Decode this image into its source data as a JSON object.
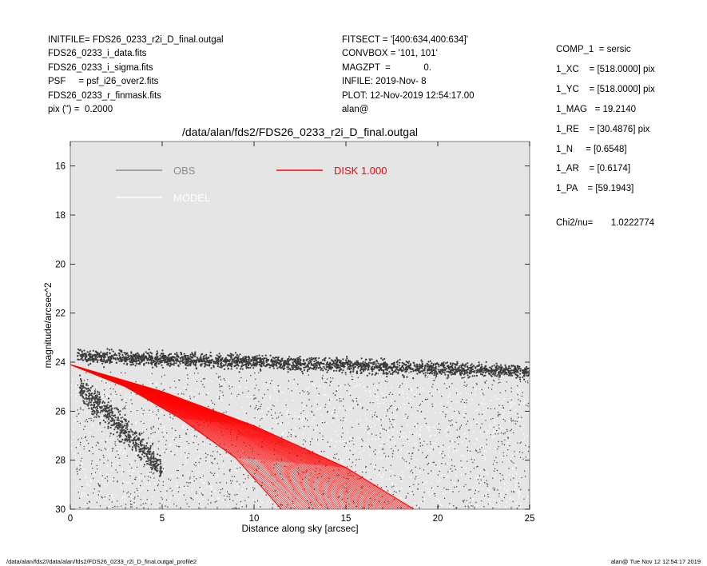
{
  "header_left": [
    "INITFILE= FDS26_0233_r2i_D_final.outgal",
    "FDS26_0233_i_data.fits",
    "FDS26_0233_i_sigma.fits",
    "PSF     = psf_i26_over2.fits",
    "FDS26_0233_r_finmask.fits",
    "pix (\") =  0.2000"
  ],
  "header_mid": [
    "FITSECT = '[400:634,400:634]'",
    "CONVBOX = '101, 101'",
    "MAGZPT  =             0.",
    "INFILE: 2019-Nov- 8",
    "PLOT: 12-Nov-2019 12:54:17.00",
    "alan@"
  ],
  "header_right": [
    "COMP_1  = sersic",
    "1_XC    = [518.0000] pix",
    "1_YC    = [518.0000] pix",
    "1_MAG   = 19.2140",
    "1_RE    = [30.4876] pix",
    "1_N     = [0.6548]",
    "1_AR    = [0.6174]",
    "1_PA    = [59.1943]"
  ],
  "chi2": "Chi2/nu=       1.0222774",
  "footer_left": "/data/alan/fds2//data/alan/fds2/FDS26_0233_r2i_D_final.outgal_profile2",
  "footer_right": "alan@   Tue Nov 12 12:54:17 2019",
  "chart_data": {
    "type": "scatter",
    "title": "/data/alan/fds2/FDS26_0233_r2i_D_final.outgal",
    "xlabel": "Distance along sky [arcsec]",
    "ylabel": "magnitude/arcsec^2",
    "xlim": [
      0,
      25
    ],
    "ylim": [
      30,
      15
    ],
    "y_inverted": true,
    "x_ticks": [
      0,
      5,
      10,
      15,
      20,
      25
    ],
    "y_ticks": [
      16,
      18,
      20,
      22,
      24,
      26,
      28,
      30
    ],
    "background": "#e5e5e5",
    "legend": [
      {
        "name": "OBS",
        "color": "#8c8c8c"
      },
      {
        "name": "MODEL",
        "color": "#ffffff"
      },
      {
        "name": "DISK  1.000",
        "color": "#ff0000"
      }
    ],
    "series": [
      {
        "name": "OBS",
        "color": "#404040",
        "description_points": [
          [
            0.5,
            23.7
          ],
          [
            5,
            23.9
          ],
          [
            10,
            24.0
          ],
          [
            15,
            24.2
          ],
          [
            20,
            24.3
          ],
          [
            25,
            24.5
          ]
        ]
      },
      {
        "name": "DISK  1.000",
        "color": "#ff0000",
        "upper_edge": [
          [
            0,
            24.1
          ],
          [
            5,
            25.2
          ],
          [
            10,
            26.6
          ],
          [
            15,
            28.3
          ],
          [
            18.7,
            30.0
          ]
        ],
        "lower_edge": [
          [
            0,
            24.1
          ],
          [
            3,
            25.0
          ],
          [
            6,
            26.3
          ],
          [
            9,
            27.9
          ],
          [
            11.5,
            30.0
          ]
        ]
      }
    ]
  }
}
